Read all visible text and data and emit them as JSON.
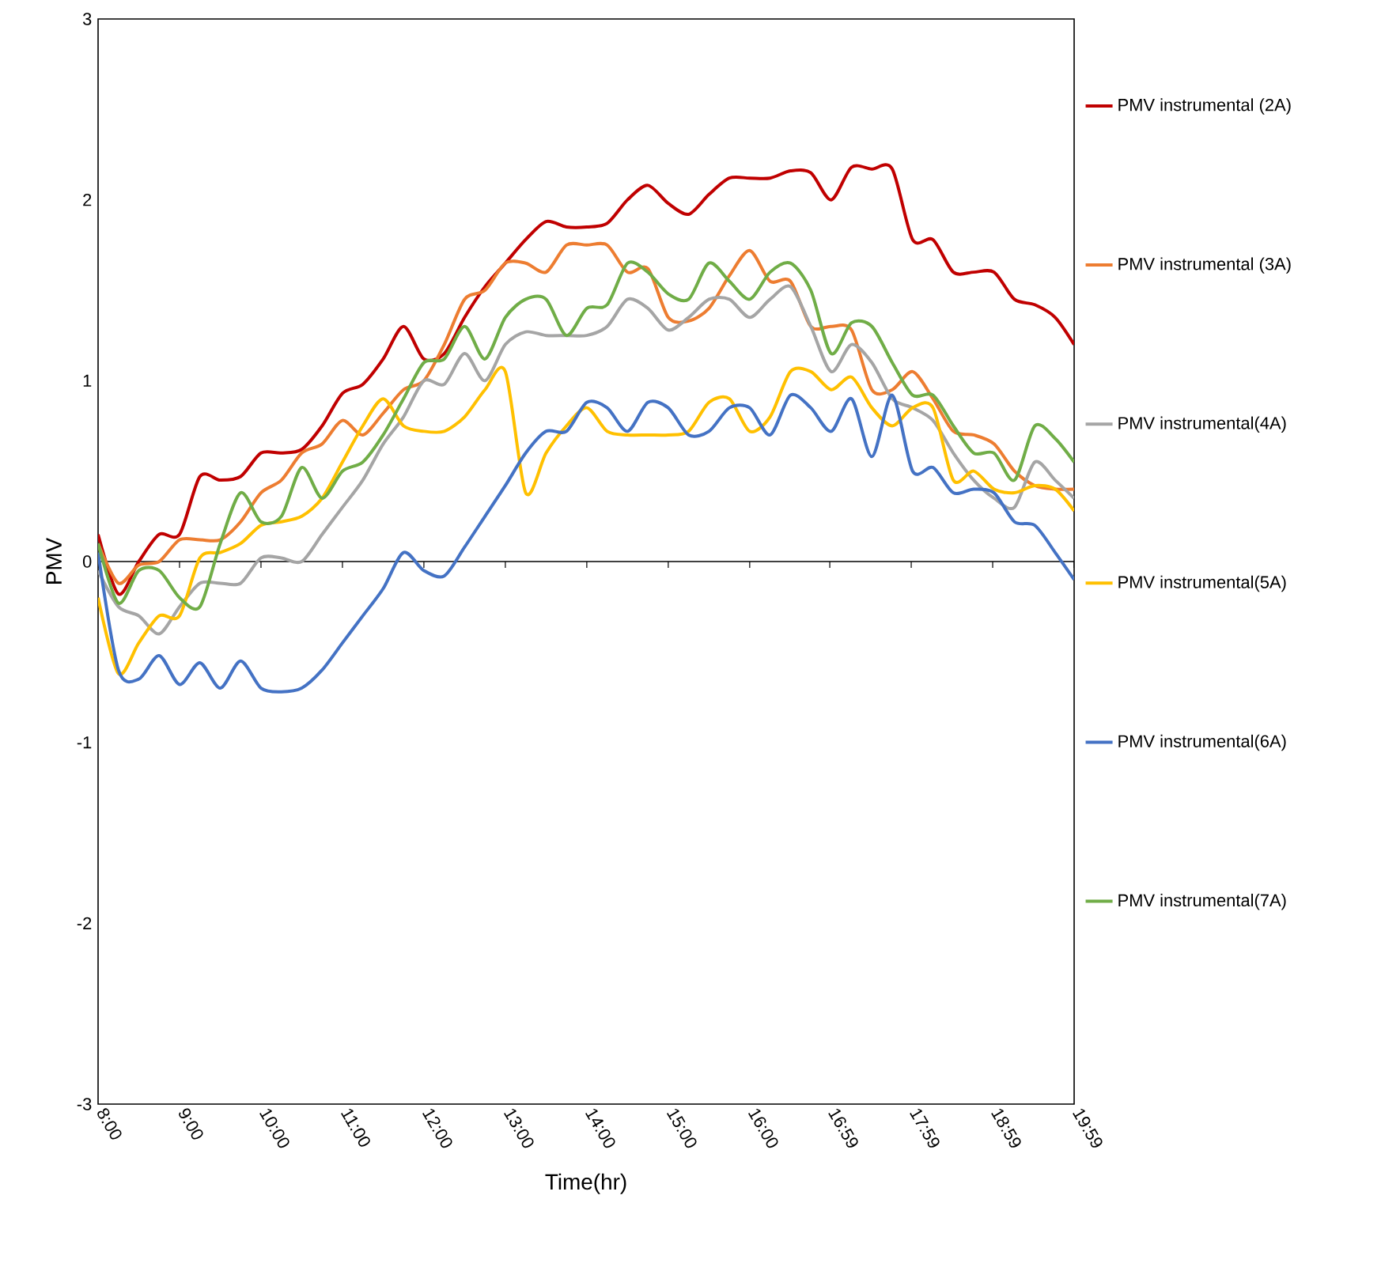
{
  "chart_data": {
    "type": "line",
    "xlabel": "Time(hr)",
    "ylabel": "PMV",
    "xlim": [
      8,
      19.983
    ],
    "ylim": [
      -3,
      3
    ],
    "yticks": [
      -3,
      -2,
      -1,
      0,
      1,
      2,
      3
    ],
    "xticks": [
      {
        "value": 8,
        "label": "8:00"
      },
      {
        "value": 9,
        "label": "9:00"
      },
      {
        "value": 10,
        "label": "10:00"
      },
      {
        "value": 11,
        "label": "11:00"
      },
      {
        "value": 12,
        "label": "12:00"
      },
      {
        "value": 13,
        "label": "13:00"
      },
      {
        "value": 14,
        "label": "14:00"
      },
      {
        "value": 15,
        "label": "15:00"
      },
      {
        "value": 16,
        "label": "16:00"
      },
      {
        "value": 16.983,
        "label": "16:59"
      },
      {
        "value": 17.983,
        "label": "17:59"
      },
      {
        "value": 18.983,
        "label": "18:59"
      },
      {
        "value": 19.983,
        "label": "19:59"
      }
    ],
    "x": [
      8,
      8.25,
      8.5,
      8.75,
      9,
      9.25,
      9.5,
      9.75,
      10,
      10.25,
      10.5,
      10.75,
      11,
      11.25,
      11.5,
      11.75,
      12,
      12.25,
      12.5,
      12.75,
      13,
      13.25,
      13.5,
      13.75,
      14,
      14.25,
      14.5,
      14.75,
      15,
      15.25,
      15.5,
      15.75,
      16,
      16.25,
      16.5,
      16.75,
      17,
      17.25,
      17.5,
      17.75,
      18,
      18.25,
      18.5,
      18.75,
      19,
      19.25,
      19.5,
      19.75,
      19.983
    ],
    "grid": false,
    "ref_lines": [
      {
        "axis": "y",
        "value": 0,
        "color": "#000000"
      }
    ],
    "legend": "right",
    "marker": "none",
    "line_style": "solid",
    "series": [
      {
        "name": "PMV instrumental (2A)",
        "color": "#c00000",
        "values": [
          0.15,
          -0.18,
          0.0,
          0.15,
          0.15,
          0.47,
          0.45,
          0.47,
          0.6,
          0.6,
          0.62,
          0.75,
          0.93,
          0.98,
          1.12,
          1.3,
          1.12,
          1.15,
          1.35,
          1.52,
          1.65,
          1.78,
          1.88,
          1.85,
          1.85,
          1.87,
          2.0,
          2.08,
          1.98,
          1.92,
          2.03,
          2.12,
          2.12,
          2.12,
          2.16,
          2.15,
          2.0,
          2.18,
          2.17,
          2.17,
          1.78,
          1.78,
          1.6,
          1.6,
          1.6,
          1.45,
          1.42,
          1.35,
          1.2
        ]
      },
      {
        "name": "PMV instrumental (3A)",
        "color": "#ed7d31",
        "values": [
          0.1,
          -0.12,
          -0.02,
          0.0,
          0.12,
          0.12,
          0.12,
          0.22,
          0.38,
          0.45,
          0.6,
          0.65,
          0.78,
          0.7,
          0.82,
          0.95,
          1.0,
          1.2,
          1.45,
          1.5,
          1.65,
          1.65,
          1.6,
          1.75,
          1.75,
          1.75,
          1.6,
          1.62,
          1.35,
          1.33,
          1.4,
          1.58,
          1.72,
          1.55,
          1.55,
          1.3,
          1.3,
          1.28,
          0.95,
          0.95,
          1.05,
          0.9,
          0.72,
          0.7,
          0.65,
          0.5,
          0.42,
          0.4,
          0.4
        ]
      },
      {
        "name": "PMV instrumental(4A)",
        "color": "#a5a5a5",
        "values": [
          -0.05,
          -0.25,
          -0.3,
          -0.4,
          -0.25,
          -0.12,
          -0.12,
          -0.12,
          0.02,
          0.02,
          0.0,
          0.15,
          0.3,
          0.45,
          0.65,
          0.8,
          1.0,
          0.98,
          1.15,
          1.0,
          1.2,
          1.27,
          1.25,
          1.25,
          1.25,
          1.3,
          1.45,
          1.4,
          1.28,
          1.35,
          1.45,
          1.45,
          1.35,
          1.45,
          1.52,
          1.3,
          1.05,
          1.2,
          1.1,
          0.9,
          0.85,
          0.78,
          0.6,
          0.45,
          0.35,
          0.3,
          0.55,
          0.45,
          0.35
        ]
      },
      {
        "name": "PMV instrumental(5A)",
        "color": "#ffc000",
        "values": [
          -0.2,
          -0.62,
          -0.45,
          -0.3,
          -0.3,
          0.02,
          0.05,
          0.1,
          0.2,
          0.22,
          0.25,
          0.35,
          0.55,
          0.75,
          0.9,
          0.75,
          0.72,
          0.72,
          0.8,
          0.95,
          1.05,
          0.38,
          0.6,
          0.75,
          0.85,
          0.72,
          0.7,
          0.7,
          0.7,
          0.72,
          0.88,
          0.9,
          0.72,
          0.8,
          1.05,
          1.05,
          0.95,
          1.02,
          0.85,
          0.75,
          0.85,
          0.85,
          0.45,
          0.5,
          0.4,
          0.38,
          0.42,
          0.4,
          0.28
        ]
      },
      {
        "name": "PMV instrumental(6A)",
        "color": "#4472c4",
        "values": [
          0.05,
          -0.6,
          -0.65,
          -0.52,
          -0.68,
          -0.56,
          -0.7,
          -0.55,
          -0.7,
          -0.72,
          -0.7,
          -0.6,
          -0.45,
          -0.3,
          -0.15,
          0.05,
          -0.05,
          -0.08,
          0.08,
          0.25,
          0.42,
          0.6,
          0.72,
          0.72,
          0.88,
          0.85,
          0.72,
          0.88,
          0.85,
          0.7,
          0.72,
          0.85,
          0.85,
          0.7,
          0.92,
          0.85,
          0.72,
          0.9,
          0.58,
          0.92,
          0.5,
          0.52,
          0.38,
          0.4,
          0.38,
          0.22,
          0.2,
          0.05,
          -0.1
        ]
      },
      {
        "name": "PMV instrumental(7A)",
        "color": "#70ad47",
        "values": [
          0.1,
          -0.23,
          -0.05,
          -0.05,
          -0.2,
          -0.25,
          0.1,
          0.38,
          0.22,
          0.25,
          0.52,
          0.35,
          0.5,
          0.55,
          0.7,
          0.9,
          1.1,
          1.12,
          1.3,
          1.12,
          1.35,
          1.45,
          1.45,
          1.25,
          1.4,
          1.42,
          1.65,
          1.6,
          1.48,
          1.45,
          1.65,
          1.55,
          1.45,
          1.6,
          1.65,
          1.5,
          1.15,
          1.32,
          1.3,
          1.1,
          0.92,
          0.92,
          0.75,
          0.6,
          0.6,
          0.45,
          0.75,
          0.68,
          0.55
        ]
      }
    ]
  }
}
